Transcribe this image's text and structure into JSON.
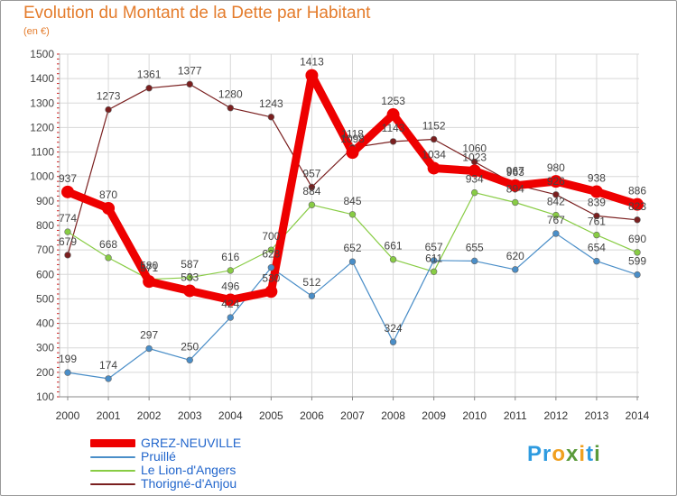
{
  "title": "Evolution du Montant de la Dette par Habitant",
  "subtitle": "(en €)",
  "logo": {
    "text": "Proxiti",
    "letters": [
      "P",
      "r",
      "o",
      "x",
      "i",
      "t",
      "i"
    ],
    "colors": [
      "#2e9be0",
      "#2e9be0",
      "#f0a020",
      "#5a9a3a",
      "#f0a020",
      "#2e9be0",
      "#5a9a3a"
    ]
  },
  "chart_data": {
    "type": "line",
    "x": [
      "2000",
      "2001",
      "2002",
      "2003",
      "2004",
      "2005",
      "2006",
      "2007",
      "2008",
      "2009",
      "2010",
      "2011",
      "2012",
      "2013",
      "2014"
    ],
    "ylim": [
      100,
      1500
    ],
    "yticks": [
      100,
      200,
      300,
      400,
      500,
      600,
      700,
      800,
      900,
      1000,
      1100,
      1200,
      1300,
      1400,
      1500
    ],
    "grid": true,
    "series": [
      {
        "name": "Thorigné-d'Anjou",
        "color": "#7a1f1f",
        "width": 1.2,
        "values": [
          679,
          1273,
          1361,
          1377,
          1280,
          1243,
          957,
          1118,
          1143,
          1152,
          1060,
          967,
          926,
          839,
          823
        ],
        "labels": [
          "679",
          "1273",
          "1361",
          "1377",
          "1280",
          "1243",
          "957",
          "1118",
          "1143",
          "1152",
          "1060",
          "967",
          "926",
          "839",
          "823"
        ]
      },
      {
        "name": "Le Lion-d'Angers",
        "color": "#88cc44",
        "width": 1.2,
        "values": [
          774,
          668,
          580,
          587,
          616,
          700,
          884,
          845,
          661,
          611,
          934,
          894,
          842,
          761,
          690
        ],
        "labels": [
          "774",
          "668",
          "580",
          "587",
          "616",
          "700",
          "884",
          "845",
          "661",
          "611",
          "934",
          "894",
          "842",
          "761",
          "690"
        ]
      },
      {
        "name": "Pruillé",
        "color": "#4a8ec8",
        "width": 1.2,
        "values": [
          199,
          174,
          297,
          250,
          424,
          628,
          512,
          652,
          324,
          657,
          655,
          620,
          767,
          654,
          599
        ],
        "labels": [
          "199",
          "174",
          "297",
          "250",
          "424",
          "628",
          "512",
          "652",
          "324",
          "657",
          "655",
          "620",
          "767",
          "654",
          "599"
        ]
      },
      {
        "name": "GREZ-NEUVILLE",
        "color": "#ee0000",
        "width": 9,
        "values": [
          937,
          870,
          571,
          533,
          496,
          530,
          1413,
          1098,
          1253,
          1034,
          1023,
          963,
          980,
          938,
          886
        ],
        "labels": [
          "937",
          "870",
          "571",
          "533",
          "496",
          "530",
          "1413",
          "1098",
          "1253",
          "1034",
          "1023",
          "963",
          "980",
          "938",
          "886"
        ]
      }
    ],
    "legend": [
      {
        "label": "GREZ-NEUVILLE",
        "color": "#ee0000",
        "thick": true
      },
      {
        "label": "Pruillé",
        "color": "#4a8ec8",
        "thick": false
      },
      {
        "label": "Le Lion-d'Angers",
        "color": "#88cc44",
        "thick": false
      },
      {
        "label": "Thorigné-d'Anjou",
        "color": "#7a1f1f",
        "thick": false
      }
    ]
  }
}
